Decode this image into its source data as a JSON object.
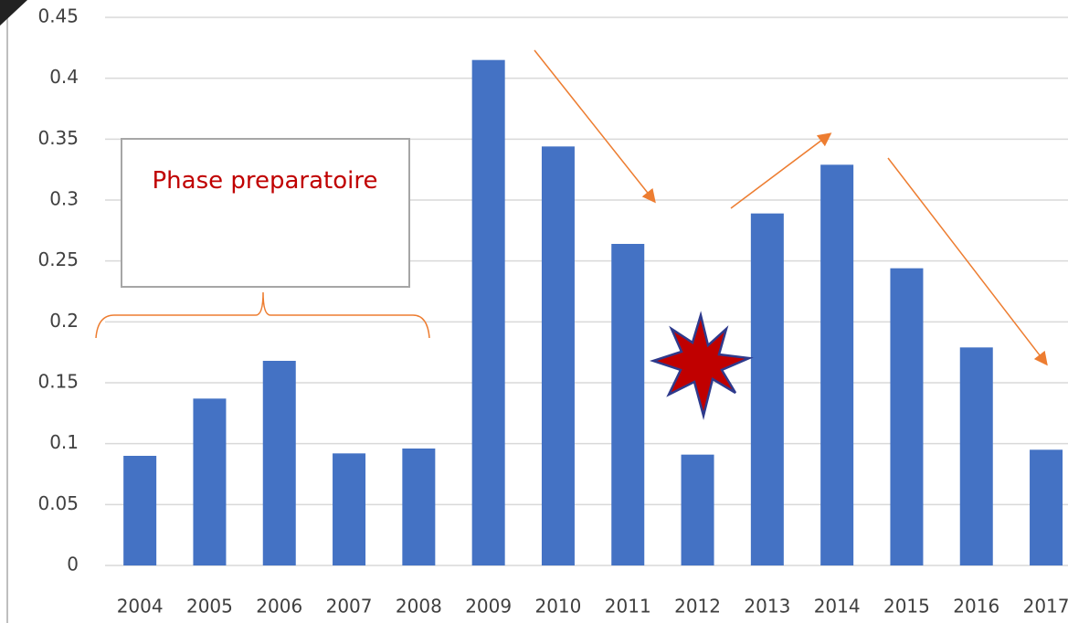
{
  "chart_data": {
    "type": "bar",
    "categories": [
      "2004",
      "2005",
      "2006",
      "2007",
      "2008",
      "2009",
      "2010",
      "2011",
      "2012",
      "2013",
      "2014",
      "2015",
      "2016",
      "2017"
    ],
    "values": [
      0.09,
      0.137,
      0.168,
      0.092,
      0.096,
      0.415,
      0.344,
      0.264,
      0.091,
      0.289,
      0.329,
      0.244,
      0.179,
      0.095
    ],
    "color": "#4472c4",
    "ylim": [
      0,
      0.45
    ],
    "yticks": [
      0,
      0.05,
      0.1,
      0.15,
      0.2,
      0.25,
      0.3,
      0.35,
      0.4,
      0.45
    ],
    "grid": true,
    "annotation": "Phase preparatoire"
  }
}
